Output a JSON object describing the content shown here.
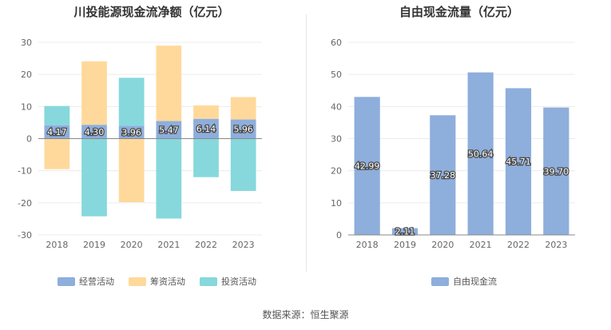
{
  "chart_data": [
    {
      "type": "bar",
      "title": "川投能源现金流净额（亿元）",
      "categories": [
        "2018",
        "2019",
        "2020",
        "2021",
        "2022",
        "2023"
      ],
      "ylim": [
        -30,
        30
      ],
      "yticks": [
        30,
        20,
        10,
        0,
        -10,
        -20,
        -30
      ],
      "stacked": true,
      "legend_position": "bottom",
      "series": [
        {
          "name": "经营活动",
          "color": "#8eaedc",
          "values": [
            4.17,
            4.3,
            3.96,
            5.47,
            6.14,
            5.96
          ],
          "labels": [
            "4.17",
            "4.30",
            "3.96",
            "5.47",
            "6.14",
            "5.96"
          ]
        },
        {
          "name": "筹资活动",
          "color": "#ffd99b",
          "values": [
            -9.5,
            19.8,
            -19.8,
            23.5,
            4.2,
            7.0
          ]
        },
        {
          "name": "投资活动",
          "color": "#86d8dc",
          "values": [
            6.0,
            -24.2,
            15.0,
            -24.9,
            -12.0,
            -16.3
          ]
        }
      ]
    },
    {
      "type": "bar",
      "title": "自由现金流量（亿元）",
      "categories": [
        "2018",
        "2019",
        "2020",
        "2021",
        "2022",
        "2023"
      ],
      "ylim": [
        0,
        60
      ],
      "yticks": [
        60,
        50,
        40,
        30,
        20,
        10,
        0
      ],
      "legend_position": "bottom",
      "series": [
        {
          "name": "自由现金流",
          "color": "#8eaedc",
          "values": [
            42.99,
            2.11,
            37.28,
            50.64,
            45.71,
            39.7
          ],
          "labels": [
            "42.99",
            "2.11",
            "37.28",
            "50.64",
            "45.71",
            "39.70"
          ]
        }
      ]
    }
  ],
  "source": "数据来源：恒生聚源"
}
